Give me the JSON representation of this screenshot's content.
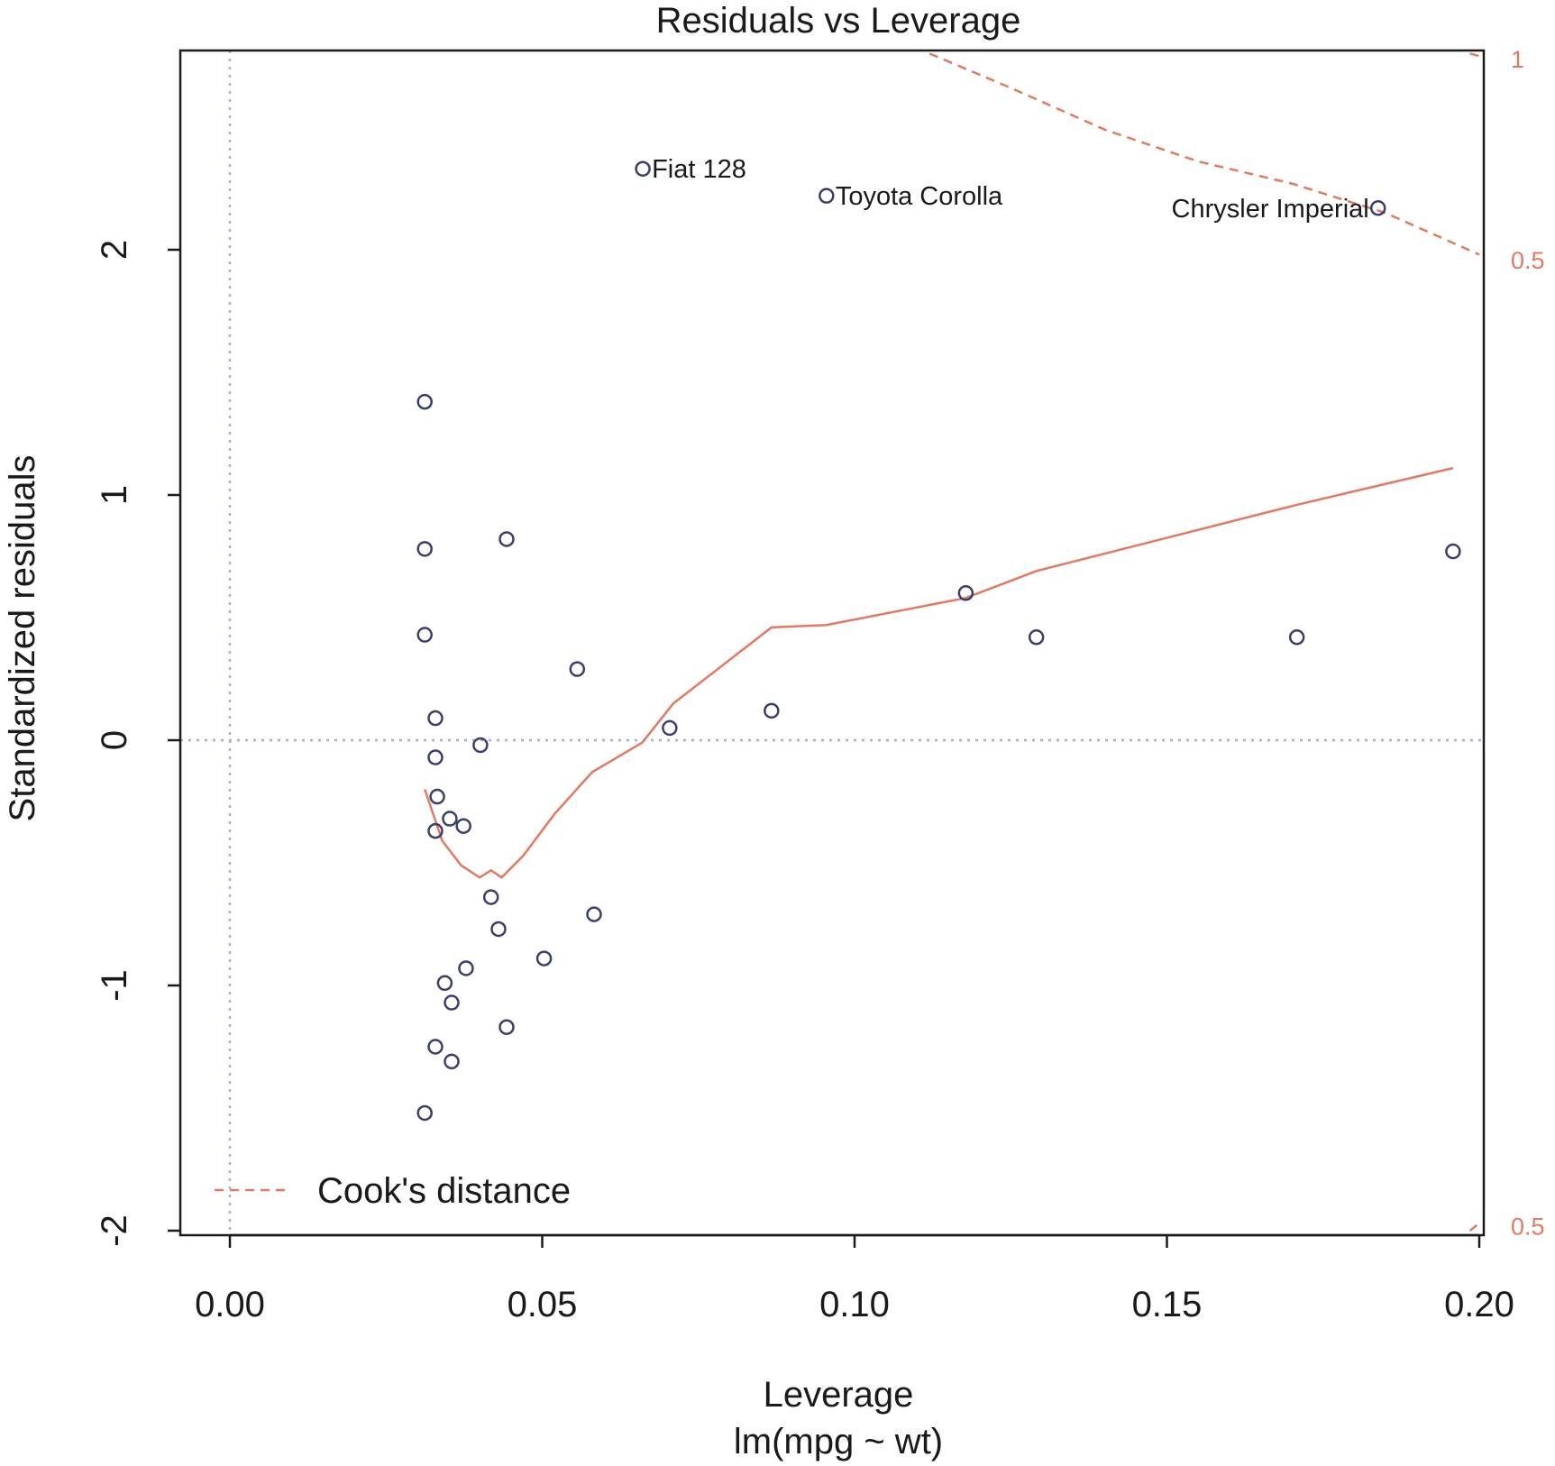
{
  "chart_data": {
    "type": "scatter",
    "title": "Residuals vs Leverage",
    "xlabel": "Leverage",
    "subtitle": "lm(mpg ~ wt)",
    "ylabel": "Standardized residuals",
    "xlim": [
      -0.008,
      0.2
    ],
    "ylim": [
      -2,
      2.8
    ],
    "x_ticks": [
      0.0,
      0.05,
      0.1,
      0.15,
      0.2
    ],
    "x_tick_labels": [
      "0.00",
      "0.05",
      "0.10",
      "0.15",
      "0.20"
    ],
    "y_ticks": [
      -2,
      -1,
      0,
      1,
      2
    ],
    "y_tick_labels": [
      "-2",
      "-1",
      "0",
      "1",
      "2"
    ],
    "reference_lines": {
      "x": 0,
      "y": 0
    },
    "colors": {
      "points": "#3a3f6b",
      "smooth": "#e07a63",
      "cook": "#e07a63",
      "reference": "#a9aed0",
      "axis": "#1a1a1a"
    },
    "points": [
      {
        "x": 0.0312,
        "y": 1.38
      },
      {
        "x": 0.0312,
        "y": 0.78
      },
      {
        "x": 0.0312,
        "y": 0.43
      },
      {
        "x": 0.0329,
        "y": 0.09
      },
      {
        "x": 0.0329,
        "y": -0.07
      },
      {
        "x": 0.0332,
        "y": -0.23
      },
      {
        "x": 0.0329,
        "y": -0.37
      },
      {
        "x": 0.0352,
        "y": -0.32
      },
      {
        "x": 0.0374,
        "y": -0.35
      },
      {
        "x": 0.0401,
        "y": -0.02
      },
      {
        "x": 0.0418,
        "y": -0.64
      },
      {
        "x": 0.043,
        "y": -0.77
      },
      {
        "x": 0.0378,
        "y": -0.93
      },
      {
        "x": 0.0344,
        "y": -0.99
      },
      {
        "x": 0.0355,
        "y": -1.07
      },
      {
        "x": 0.0329,
        "y": -1.25
      },
      {
        "x": 0.0355,
        "y": -1.31
      },
      {
        "x": 0.0312,
        "y": -1.52
      },
      {
        "x": 0.0443,
        "y": 0.82
      },
      {
        "x": 0.0443,
        "y": -1.17
      },
      {
        "x": 0.0503,
        "y": -0.89
      },
      {
        "x": 0.0556,
        "y": 0.29
      },
      {
        "x": 0.0583,
        "y": -0.71
      },
      {
        "x": 0.0704,
        "y": 0.05
      },
      {
        "x": 0.0867,
        "y": 0.12
      },
      {
        "x": 0.1178,
        "y": 0.6
      },
      {
        "x": 0.1291,
        "y": 0.42
      },
      {
        "x": 0.1708,
        "y": 0.42
      },
      {
        "x": 0.1958,
        "y": 0.77
      },
      {
        "x": 0.0661,
        "y": 2.33,
        "label": "Fiat 128"
      },
      {
        "x": 0.0955,
        "y": 2.22,
        "label": "Toyota Corolla"
      },
      {
        "x": 0.1838,
        "y": 2.17,
        "label": "Chrysler Imperial"
      }
    ],
    "smooth_line": [
      [
        0.0312,
        -0.2
      ],
      [
        0.034,
        -0.41
      ],
      [
        0.037,
        -0.51
      ],
      [
        0.04,
        -0.56
      ],
      [
        0.0418,
        -0.53
      ],
      [
        0.0435,
        -0.56
      ],
      [
        0.047,
        -0.47
      ],
      [
        0.052,
        -0.3
      ],
      [
        0.058,
        -0.13
      ],
      [
        0.066,
        -0.01
      ],
      [
        0.071,
        0.15
      ],
      [
        0.0867,
        0.46
      ],
      [
        0.0955,
        0.47
      ],
      [
        0.1178,
        0.58
      ],
      [
        0.1291,
        0.69
      ],
      [
        0.1708,
        0.96
      ],
      [
        0.1958,
        1.11
      ]
    ],
    "cook_lines": [
      {
        "level": "1",
        "points": [
          [
            0.112,
            2.8
          ],
          [
            0.125,
            2.66
          ],
          [
            0.14,
            2.49
          ],
          [
            0.155,
            2.36
          ],
          [
            0.17,
            2.27
          ],
          [
            0.185,
            2.15
          ],
          [
            0.2,
            1.98
          ]
        ]
      },
      {
        "level": "0.5",
        "points": [
          [
            0.1985,
            2.8
          ],
          [
            0.2,
            2.79
          ]
        ]
      },
      {
        "level": "0.5",
        "points": [
          [
            0.1985,
            -2.0
          ],
          [
            0.2,
            -1.97
          ]
        ]
      }
    ],
    "cook_labels": [
      {
        "text": "1",
        "y": 2.78
      },
      {
        "text": "0.5",
        "y": 1.96
      },
      {
        "text": "0.5",
        "y": -1.98
      }
    ],
    "legend": {
      "position": "bottom-left",
      "entries": [
        {
          "label": "Cook's distance",
          "style": "dashed"
        }
      ]
    }
  }
}
